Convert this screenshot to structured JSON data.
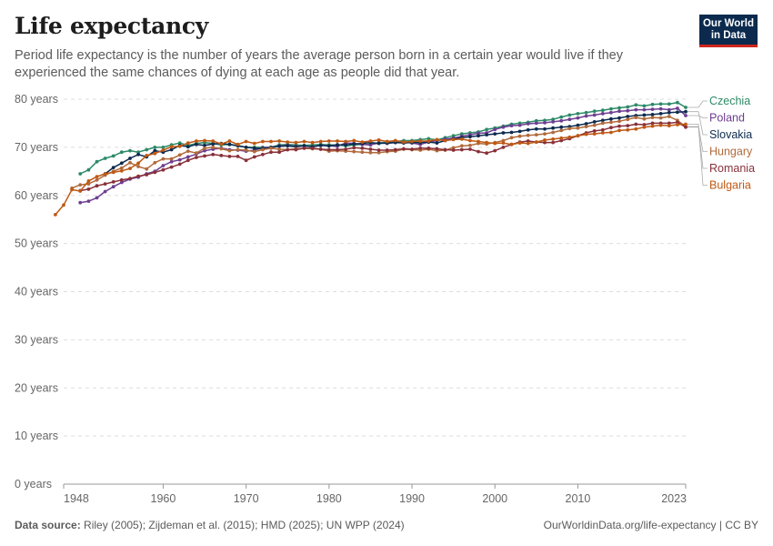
{
  "header": {
    "title": "Life expectancy",
    "subtitle": "Period life expectancy is the number of years the average person born in a certain year would live if they experienced the same chances of dying at each age as people did that year.",
    "logo_line1": "Our World",
    "logo_line2": "in Data"
  },
  "footer": {
    "source_label": "Data source:",
    "source_text": " Riley (2005); Zijdeman et al. (2015); HMD (2025); UN WPP (2024)",
    "url_text": "OurWorldinData.org/life-expectancy | CC BY"
  },
  "chart_data": {
    "type": "line",
    "title": "Life expectancy",
    "xlabel": "",
    "ylabel": "",
    "xlim": [
      1948,
      2023
    ],
    "ylim": [
      0,
      80
    ],
    "y_ticks": [
      0,
      10,
      20,
      30,
      40,
      50,
      60,
      70,
      80
    ],
    "y_tick_labels": [
      "0 years",
      "10 years",
      "20 years",
      "30 years",
      "40 years",
      "50 years",
      "60 years",
      "70 years",
      "80 years"
    ],
    "x_ticks": [
      1948,
      1960,
      1970,
      1980,
      1990,
      2000,
      2010,
      2023
    ],
    "x_tick_labels": [
      "1948",
      "1960",
      "1970",
      "1980",
      "1990",
      "2000",
      "2010",
      "2023"
    ],
    "grid": "horizontal dashed",
    "legend": "right, labels at line ends",
    "series": [
      {
        "name": "Czechia",
        "color": "#2d8a68",
        "start": 1950,
        "values": [
          64.5,
          65.3,
          67,
          67.7,
          68.2,
          69,
          69.3,
          69,
          69.5,
          70,
          70,
          70.5,
          70.9,
          70.4,
          70.8,
          71,
          70.8,
          70.5,
          70.6,
          70.4,
          70,
          70,
          70,
          70,
          70.5,
          70.6,
          70.5,
          70.4,
          70.5,
          70.6,
          70.5,
          70.5,
          70.3,
          70.5,
          70.6,
          70.6,
          71,
          71,
          71.2,
          71.4,
          71.4,
          71.6,
          71.8,
          71.5,
          72,
          72.4,
          72.8,
          73,
          73.2,
          73.7,
          74,
          74.4,
          74.8,
          75,
          75.2,
          75.5,
          75.6,
          75.8,
          76.3,
          76.7,
          77,
          77.2,
          77.5,
          77.7,
          78,
          78.2,
          78.4,
          78.8,
          78.6,
          78.9,
          79,
          79,
          79.3,
          78.3,
          77.5,
          79.1,
          79.8
        ]
      },
      {
        "name": "Poland",
        "color": "#6d3e91",
        "start": 1950,
        "values": [
          58.5,
          58.8,
          59.5,
          60.8,
          61.8,
          62.7,
          63.4,
          63.8,
          64.5,
          65,
          66.2,
          67,
          67.4,
          68,
          68.6,
          69.3,
          69.6,
          69.8,
          69.5,
          69.4,
          69.2,
          69.4,
          69.9,
          70,
          70.3,
          70.4,
          70.2,
          70.3,
          70.1,
          70.4,
          70.3,
          70.2,
          70.9,
          70.8,
          70.6,
          70.5,
          70.9,
          70.8,
          71,
          71.1,
          70.9,
          70.6,
          71.1,
          71.4,
          71.7,
          71.9,
          72.3,
          72.6,
          72.9,
          73,
          73.7,
          74.2,
          74.5,
          74.6,
          74.9,
          75,
          75.1,
          75.3,
          75.5,
          75.8,
          76.1,
          76.5,
          76.7,
          77,
          77.2,
          77.5,
          77.6,
          77.8,
          77.8,
          77.9,
          78,
          77.8,
          78.1,
          76.6,
          75.5,
          77.6,
          78.4
        ]
      },
      {
        "name": "Slovakia",
        "color": "#0c2a4e",
        "start": 1953,
        "values": [
          64.5,
          65.8,
          66.7,
          67.7,
          68.5,
          68,
          69.3,
          69,
          69.5,
          70.4,
          70.1,
          70.6,
          70.4,
          70.7,
          70.8,
          70.6,
          70.3,
          70,
          69.8,
          69.7,
          70,
          70.2,
          70.3,
          70.1,
          70.3,
          70.1,
          70.4,
          70.3,
          70.5,
          70.5,
          70.7,
          70.8,
          71,
          70.8,
          70.9,
          71,
          70.9,
          71,
          71,
          71.1,
          70.9,
          71.4,
          71.7,
          72,
          72.2,
          72.4,
          72.6,
          72.8,
          73,
          73.1,
          73.3,
          73.6,
          73.8,
          73.8,
          74,
          74.2,
          74.3,
          74.6,
          74.9,
          75.3,
          75.6,
          75.9,
          76.1,
          76.4,
          76.6,
          76.7,
          76.8,
          77,
          77.2,
          77.3,
          77.4,
          77.2,
          77.7,
          76.8,
          74.8,
          76.6,
          77.8
        ]
      },
      {
        "name": "Hungary",
        "color": "#b16a3b",
        "start": 1949,
        "values": [
          61.5,
          62.2,
          62.4,
          63.2,
          64.2,
          65,
          65.7,
          66.8,
          66,
          65.5,
          66.8,
          67.6,
          67.6,
          68.4,
          69.2,
          68.8,
          69.8,
          70,
          69.7,
          69.3,
          69.5,
          69.4,
          69.1,
          69.5,
          69.8,
          69.6,
          69.5,
          69.7,
          69.8,
          69.7,
          69.6,
          69.2,
          69.3,
          69.2,
          69.1,
          69,
          68.9,
          68.9,
          69.1,
          69.2,
          69.6,
          69.5,
          69.4,
          69.6,
          69.3,
          69.4,
          69.9,
          70.3,
          70.4,
          70.8,
          70.7,
          71,
          71.4,
          72,
          72.3,
          72.5,
          72.6,
          72.8,
          73.1,
          73.5,
          73.9,
          74,
          74.3,
          74.6,
          75,
          75.2,
          75.4,
          75.8,
          76.2,
          75.9,
          76.2,
          76.1,
          76.4,
          75.6,
          74.3,
          75.9,
          76.7
        ]
      },
      {
        "name": "Romania",
        "color": "#883039",
        "start": 1950,
        "values": [
          61,
          61.3,
          62,
          62.4,
          62.8,
          63.2,
          63.5,
          64,
          64.3,
          64.8,
          65.3,
          65.9,
          66.5,
          67.3,
          67.9,
          68.2,
          68.5,
          68.3,
          68.1,
          68.1,
          67.3,
          68,
          68.5,
          69,
          69,
          69.5,
          69.5,
          69.8,
          69.8,
          69.6,
          69.5,
          69.5,
          69.6,
          69.9,
          69.8,
          69.6,
          69.4,
          69.4,
          69.5,
          69.7,
          69.6,
          69.8,
          69.8,
          69.7,
          69.5,
          69.4,
          69.5,
          69.6,
          69.1,
          68.8,
          69.3,
          70,
          70.6,
          71.1,
          71.3,
          71.1,
          71,
          71,
          71.4,
          71.8,
          72.4,
          73,
          73.4,
          73.6,
          74.1,
          74.4,
          74.5,
          74.8,
          74.7,
          75,
          75,
          75,
          75.2,
          74.2,
          72.5,
          74.5,
          75.8
        ]
      },
      {
        "name": "Bulgaria",
        "color": "#be5915",
        "start": 1947,
        "values": [
          56,
          58,
          61.2,
          60.9,
          63,
          63.9,
          64.5,
          64.8,
          65.1,
          65.6,
          66.7,
          68.3,
          68.7,
          69.4,
          70.1,
          70.2,
          70.9,
          71.3,
          71.4,
          71.3,
          70.7,
          71.3,
          70.6,
          71.2,
          70.8,
          71.2,
          71.2,
          71.3,
          71.1,
          71,
          71.2,
          71,
          71.2,
          71.3,
          71.3,
          71.2,
          71.4,
          71.1,
          71.3,
          71.5,
          71.2,
          71.4,
          71.1,
          71.2,
          71.3,
          71.3,
          71.6,
          71.4,
          71.6,
          71.7,
          71.4,
          71.2,
          71,
          70.8,
          70.9,
          70.6,
          70.9,
          70.8,
          71.1,
          71.5,
          71.7,
          71.9,
          72.1,
          72.4,
          72.7,
          72.8,
          73,
          73.1,
          73.5,
          73.6,
          73.8,
          74.2,
          74.4,
          74.6,
          74.5,
          74.7,
          74.8,
          74.8,
          74.9,
          73.9,
          71.4,
          74.2,
          75.7
        ]
      }
    ]
  }
}
